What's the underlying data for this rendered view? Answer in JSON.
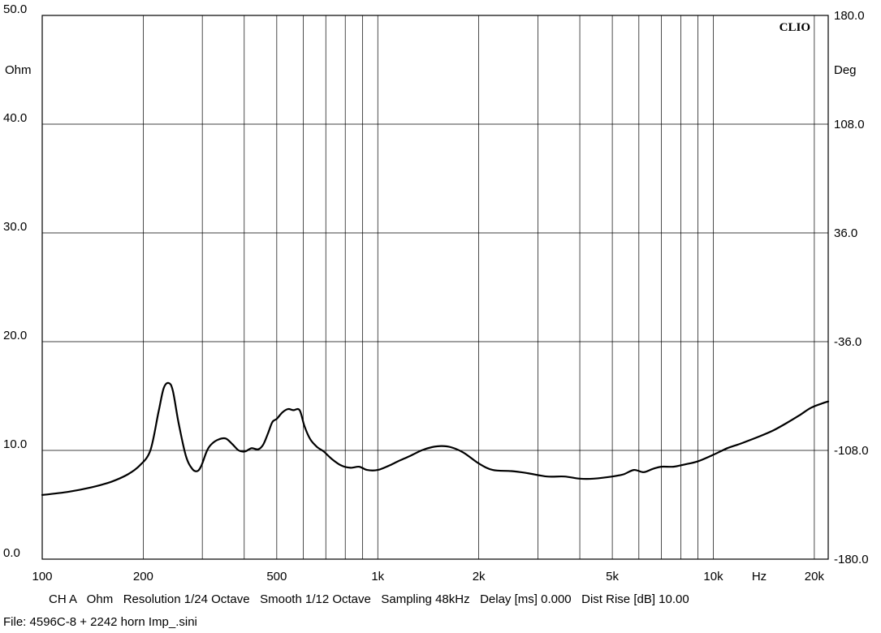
{
  "chart_data": {
    "type": "line",
    "brand": "CLIO",
    "xscale": "log",
    "xlim": [
      100,
      22000
    ],
    "ylim_left": [
      0,
      50
    ],
    "ylim_right": [
      -180,
      180
    ],
    "y_left_unit": "Ohm",
    "y_right_unit": "Deg",
    "x_unit": "Hz",
    "grid": true,
    "x_ticks": [
      {
        "value": 100,
        "label": "100"
      },
      {
        "value": 200,
        "label": "200"
      },
      {
        "value": 500,
        "label": "500"
      },
      {
        "value": 1000,
        "label": "1k"
      },
      {
        "value": 2000,
        "label": "2k"
      },
      {
        "value": 5000,
        "label": "5k"
      },
      {
        "value": 10000,
        "label": "10k"
      },
      {
        "value": 20000,
        "label": "20k"
      }
    ],
    "y_left_ticks": [
      "0.0",
      "10.0",
      "20.0",
      "30.0",
      "40.0",
      "50.0"
    ],
    "y_right_ticks": [
      "-180.0",
      "-108.0",
      "-36.0",
      "36.0",
      "108.0",
      "180.0"
    ],
    "series": [
      {
        "name": "",
        "color": "#000000",
        "x": [
          100,
          120,
          140,
          160,
          180,
          195,
          210,
          222,
          230,
          238,
          245,
          255,
          268,
          280,
          290,
          298,
          310,
          320,
          335,
          352,
          368,
          385,
          402,
          420,
          440,
          455,
          470,
          485,
          500,
          520,
          540,
          560,
          585,
          605,
          630,
          660,
          690,
          730,
          780,
          830,
          880,
          930,
          1000,
          1080,
          1150,
          1250,
          1350,
          1450,
          1550,
          1650,
          1800,
          2000,
          2200,
          2500,
          2800,
          3200,
          3600,
          4000,
          4400,
          5000,
          5400,
          5800,
          6200,
          6600,
          7000,
          7600,
          8200,
          9000,
          10000,
          11000,
          12000,
          13500,
          15000,
          16500,
          18000,
          19500,
          21000,
          22000
        ],
        "y": [
          5.9,
          6.2,
          6.6,
          7.1,
          7.8,
          8.6,
          10.0,
          13.5,
          15.7,
          16.2,
          15.5,
          12.5,
          9.5,
          8.3,
          8.1,
          8.6,
          10.0,
          10.6,
          11.0,
          11.1,
          10.6,
          10.0,
          9.9,
          10.2,
          10.1,
          10.5,
          11.5,
          12.6,
          12.9,
          13.5,
          13.8,
          13.7,
          13.7,
          12.2,
          11.0,
          10.3,
          9.9,
          9.2,
          8.6,
          8.4,
          8.5,
          8.2,
          8.2,
          8.6,
          9.0,
          9.5,
          10.0,
          10.3,
          10.4,
          10.3,
          9.8,
          8.8,
          8.2,
          8.1,
          7.9,
          7.6,
          7.6,
          7.4,
          7.4,
          7.6,
          7.8,
          8.2,
          8.0,
          8.3,
          8.5,
          8.5,
          8.7,
          9.0,
          9.6,
          10.2,
          10.6,
          11.2,
          11.8,
          12.5,
          13.2,
          13.9,
          14.3,
          14.5
        ]
      }
    ]
  },
  "footer": {
    "info_line": "CH A   Ohm   Resolution 1/24 Octave   Smooth 1/12 Octave   Sampling 48kHz   Delay [ms] 0.000   Dist Rise [dB] 10.00",
    "file_line": "File: 4596C-8 + 2242 horn Imp_.sini"
  }
}
